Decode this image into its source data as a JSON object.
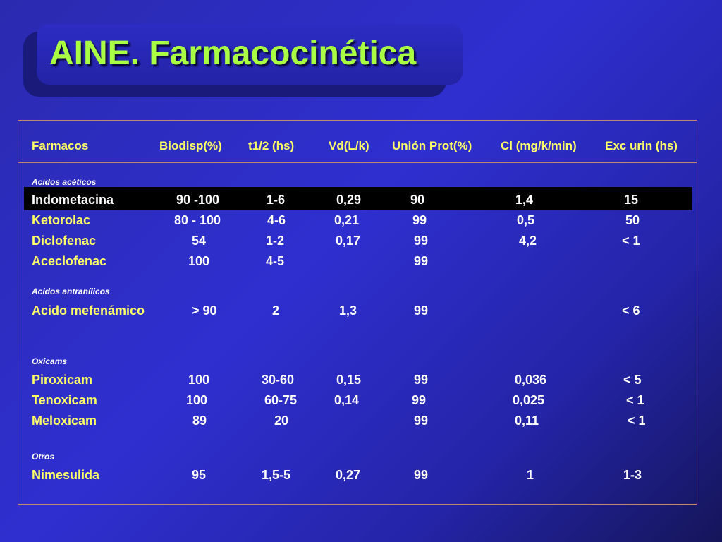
{
  "title": "AINE. Farmacocinética",
  "headers": [
    "Farmacos",
    "Biodisp(%)",
    "t1/2 (hs)",
    "Vd(L/k)",
    "Unión Prot(%)",
    "Cl (mg/k/min)",
    "Exc urin (hs)"
  ],
  "sections": [
    {
      "name": "Acidos acéticos",
      "rows": [
        {
          "drug": "Indometacina",
          "biodisp": "90 -100",
          "t12": "1-6",
          "vd": "0,29",
          "union": "90",
          "cl": "1,4",
          "exc": "15",
          "highlighted": true
        },
        {
          "drug": "Ketorolac",
          "biodisp": "80 - 100",
          "t12": "4-6",
          "vd": "0,21",
          "union": "99",
          "cl": "0,5",
          "exc": "50"
        },
        {
          "drug": "Diclofenac",
          "biodisp": "54",
          "t12": "1-2",
          "vd": "0,17",
          "union": "99",
          "cl": "4,2",
          "exc": "< 1"
        },
        {
          "drug": "Aceclofenac",
          "biodisp": "100",
          "t12": "4-5",
          "vd": "",
          "union": "99",
          "cl": "",
          "exc": ""
        }
      ]
    },
    {
      "name": "Acidos antranílicos",
      "rows": [
        {
          "drug": "Acido mefenámico",
          "biodisp": "> 90",
          "t12": "2",
          "vd": "1,3",
          "union": "99",
          "cl": "",
          "exc": "< 6"
        }
      ]
    },
    {
      "name": "Oxicams",
      "rows": [
        {
          "drug": "Piroxicam",
          "biodisp": "100",
          "t12": "30-60",
          "vd": "0,15",
          "union": "99",
          "cl": "0,036",
          "exc": "< 5"
        },
        {
          "drug": "Tenoxicam",
          "biodisp": "100",
          "t12": "60-75",
          "vd": "0,14",
          "union": "99",
          "cl": "0,025",
          "exc": "< 1"
        },
        {
          "drug": "Meloxicam",
          "biodisp": "89",
          "t12": "20",
          "vd": "",
          "union": "99",
          "cl": "0,11",
          "exc": "< 1"
        }
      ]
    },
    {
      "name": "Otros",
      "rows": [
        {
          "drug": "Nimesulida",
          "biodisp": "95",
          "t12": "1,5-5",
          "vd": "0,27",
          "union": "99",
          "cl": "1",
          "exc": "1-3"
        }
      ]
    }
  ],
  "colors": {
    "drug_text": "#ffff66",
    "value_text": "#ffffff",
    "title_text": "#aaff44",
    "frame": "#c48a6a",
    "highlight_bg": "#000000"
  }
}
